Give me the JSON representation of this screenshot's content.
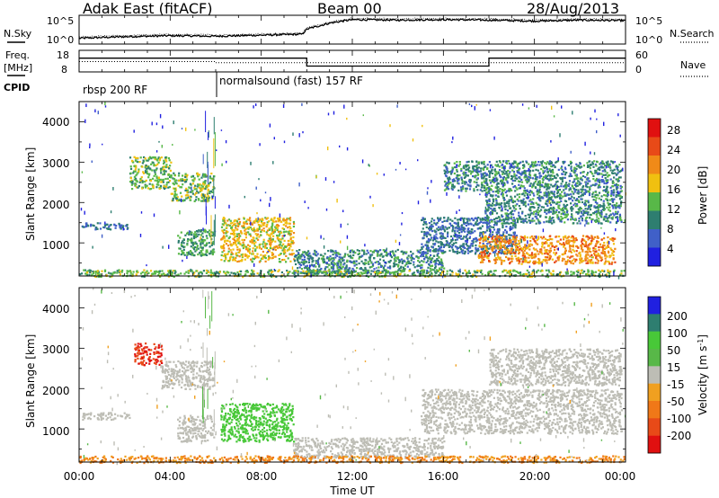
{
  "header": {
    "station": "Adak East (fitACF)",
    "beam": "Beam 00",
    "date": "28/Aug/2013"
  },
  "time_axis": {
    "ticks": [
      "00:00",
      "04:00",
      "08:00",
      "12:00",
      "16:00",
      "20:00",
      "00:00"
    ],
    "label": "Time UT"
  },
  "noise_panel": {
    "left_label": "N.Sky",
    "right_label": "N.Search",
    "left_ticks": [
      "10^5",
      "10^0"
    ],
    "right_ticks": [
      "10^5",
      "10^0"
    ]
  },
  "freq_panel": {
    "left_label_1": "Freq.",
    "left_label_2": "[MHz]",
    "right_label": "Nave",
    "left_ticks": [
      "18",
      "8"
    ],
    "right_ticks": [
      "60",
      "0"
    ]
  },
  "cpid_panel": {
    "label": "CPID",
    "segments": [
      {
        "name": "rbsp 200 RF",
        "start_hour": 0,
        "end_hour": 6
      },
      {
        "name": "normalsound (fast) 157 RF",
        "start_hour": 6,
        "end_hour": 24
      }
    ]
  },
  "power_panel": {
    "ylabel": "Slant Range [km]",
    "yticks": [
      "4000",
      "3000",
      "2000",
      "1000"
    ],
    "colorbar_label": "Power [dB]",
    "colorbar_ticks": [
      "28",
      "24",
      "20",
      "16",
      "12",
      "8",
      "4"
    ]
  },
  "velocity_panel": {
    "ylabel": "Slant Range [km]",
    "yticks": [
      "4000",
      "3000",
      "2000",
      "1000"
    ],
    "colorbar_label": "Velocity [m s",
    "colorbar_label_sup": "-1",
    "colorbar_label_end": "]",
    "colorbar_ticks": [
      "200",
      "100",
      "50",
      "15",
      "-15",
      "-50",
      "-100",
      "-200"
    ]
  },
  "colors": {
    "power_scale": [
      "#2020e0",
      "#4060c8",
      "#2e7e70",
      "#58b848",
      "#f0c010",
      "#f08a18",
      "#e84a18",
      "#e01010"
    ],
    "velocity_scale": [
      "#e01010",
      "#e84a18",
      "#f07818",
      "#f0a020",
      "#bdbdb5",
      "#58b848",
      "#48c838",
      "#2e7e70",
      "#2020e0"
    ],
    "ground_scatter": "#bdbdb5"
  },
  "chart_data": [
    {
      "type": "line",
      "name": "noise",
      "x_units": "hours UT",
      "xlim": [
        0,
        24
      ],
      "ylim_log10": [
        0,
        5
      ],
      "x": [
        0,
        2,
        4,
        6,
        8,
        9.8,
        10,
        11,
        12,
        14,
        16,
        18,
        20,
        22,
        24
      ],
      "y_log10": [
        0.8,
        1.1,
        1.3,
        1.2,
        1.4,
        1.6,
        2.6,
        3.8,
        4.5,
        4.4,
        4.5,
        4.4,
        4.2,
        4.4,
        4.3
      ]
    },
    {
      "type": "line",
      "name": "frequency",
      "x_units": "hours UT",
      "xlim": [
        0,
        24
      ],
      "ylim": [
        8,
        18
      ],
      "x": [
        0,
        6,
        6,
        10,
        10,
        18,
        18,
        24
      ],
      "y": [
        14.5,
        14.5,
        14.5,
        14.5,
        10.5,
        10.5,
        14.5,
        14.5
      ]
    },
    {
      "type": "heatmap",
      "name": "power",
      "x_units": "hours UT",
      "y_units": "km",
      "xlim": [
        0,
        24
      ],
      "ylim": [
        180,
        4500
      ],
      "value_units": "dB",
      "value_range": [
        0,
        30
      ],
      "scatter_regions": [
        {
          "t0": 0.1,
          "t1": 2.2,
          "r0": 1350,
          "r1": 1520,
          "level": 8
        },
        {
          "t0": 2.2,
          "t1": 4.0,
          "r0": 2350,
          "r1": 3150,
          "level": 14
        },
        {
          "t0": 4.0,
          "t1": 5.9,
          "r0": 2050,
          "r1": 2750,
          "level": 14
        },
        {
          "t0": 4.3,
          "t1": 5.9,
          "r0": 700,
          "r1": 1350,
          "level": 12
        },
        {
          "t0": 6.2,
          "t1": 9.4,
          "r0": 550,
          "r1": 1650,
          "level": 18
        },
        {
          "t0": 9.4,
          "t1": 16.0,
          "r0": 250,
          "r1": 850,
          "level": 10
        },
        {
          "t0": 15.0,
          "t1": 19.2,
          "r0": 750,
          "r1": 1650,
          "level": 8
        },
        {
          "t0": 16.0,
          "t1": 23.8,
          "r0": 2300,
          "r1": 3050,
          "level": 10
        },
        {
          "t0": 17.8,
          "t1": 23.8,
          "r0": 1500,
          "r1": 2300,
          "level": 10
        },
        {
          "t0": 17.5,
          "t1": 23.5,
          "r0": 500,
          "r1": 1200,
          "level": 22
        },
        {
          "t0": 0.0,
          "t1": 24.0,
          "r0": 180,
          "r1": 350,
          "level": 14
        }
      ]
    },
    {
      "type": "heatmap",
      "name": "velocity",
      "x_units": "hours UT",
      "y_units": "km",
      "xlim": [
        0,
        24
      ],
      "ylim": [
        180,
        4500
      ],
      "value_units": "m s^-1",
      "value_range": [
        -200,
        200
      ],
      "scatter_regions": [
        {
          "t0": 0.1,
          "t1": 2.2,
          "r0": 1250,
          "r1": 1420,
          "level": 0
        },
        {
          "t0": 2.4,
          "t1": 3.6,
          "r0": 2600,
          "r1": 3150,
          "level": -200
        },
        {
          "t0": 3.6,
          "t1": 5.9,
          "r0": 2000,
          "r1": 2700,
          "level": 0
        },
        {
          "t0": 4.3,
          "t1": 5.9,
          "r0": 700,
          "r1": 1350,
          "level": 0
        },
        {
          "t0": 6.2,
          "t1": 9.4,
          "r0": 700,
          "r1": 1650,
          "level": 60
        },
        {
          "t0": 9.4,
          "t1": 16.0,
          "r0": 300,
          "r1": 800,
          "level": 0
        },
        {
          "t0": 15.0,
          "t1": 23.8,
          "r0": 900,
          "r1": 2000,
          "level": 0
        },
        {
          "t0": 18.0,
          "t1": 23.8,
          "r0": 2100,
          "r1": 3000,
          "level": 0
        },
        {
          "t0": 0.0,
          "t1": 24.0,
          "r0": 180,
          "r1": 350,
          "level": -50
        }
      ]
    }
  ]
}
